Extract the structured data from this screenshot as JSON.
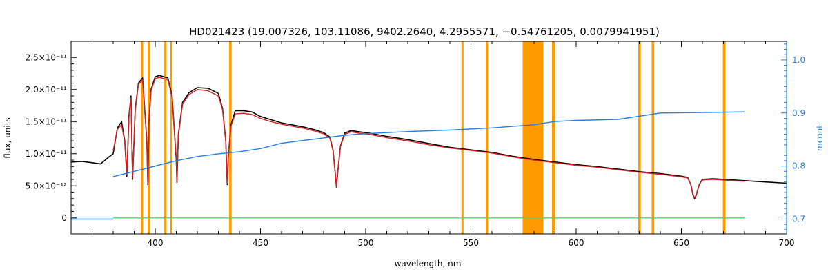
{
  "chart_data": {
    "type": "line",
    "title": "HD021423   (19.007326, 103.11086, 9402.2640, 4.2955571, −0.54761205, 0.0079941951)",
    "xlabel": "wavelength, nm",
    "ylabel": "flux, units",
    "y2label": "mcont",
    "xlim": [
      360,
      700
    ],
    "ylim": [
      -2.5e-12,
      2.75e-11
    ],
    "y2lim": [
      0.672,
      1.035
    ],
    "x_ticks": [
      400,
      450,
      500,
      550,
      600,
      650,
      700
    ],
    "x_tick_labels": [
      "400",
      "450",
      "500",
      "550",
      "600",
      "650",
      "700"
    ],
    "y_ticks": [
      0,
      5e-12,
      1e-11,
      1.5e-11,
      2e-11,
      2.5e-11
    ],
    "y_tick_labels": [
      "0",
      "5.0×10⁻¹²",
      "1.0×10⁻¹¹",
      "1.5×10⁻¹¹",
      "2.0×10⁻¹¹",
      "2.5×10⁻¹¹"
    ],
    "y2_ticks": [
      0.7,
      0.8,
      0.9,
      1.0
    ],
    "y2_tick_labels": [
      "0.7",
      "0.8",
      "0.9",
      "1.0"
    ],
    "grid": false,
    "legend": "none",
    "masked_bands": [
      [
        393.2,
        394.2
      ],
      [
        396.4,
        397.4
      ],
      [
        404.3,
        405.3
      ],
      [
        407.2,
        408.2
      ],
      [
        435.1,
        436.3
      ],
      [
        545.5,
        546.5
      ],
      [
        557.1,
        558.1
      ],
      [
        574.6,
        584.4
      ],
      [
        588.5,
        590.0
      ],
      [
        629.5,
        630.7
      ],
      [
        635.9,
        637.1
      ],
      [
        669.7,
        671.0
      ]
    ],
    "series": [
      {
        "axis": "left",
        "x": [
          360,
          365,
          370,
          374,
          378,
          380,
          382,
          384,
          385.5,
          386.5,
          387.5,
          388.5,
          389.2,
          390.5,
          392,
          394,
          396,
          396.5,
          397,
          398,
          400,
          402,
          404,
          406,
          408,
          410,
          410.3,
          411,
          413,
          416,
          420,
          425,
          430,
          432,
          433.5,
          434.2,
          434.8,
          436,
          438,
          442,
          446,
          450,
          455,
          460,
          465,
          470,
          475,
          480,
          483,
          484.5,
          485.5,
          486.1,
          486.7,
          488,
          490,
          493,
          497,
          502,
          510,
          520,
          530,
          540,
          550,
          560,
          570,
          580,
          590,
          600,
          610,
          620,
          630,
          640,
          645,
          650,
          653,
          654.5,
          655.5,
          656.3,
          657.1,
          658.5,
          660,
          665,
          670,
          680,
          690,
          700
        ],
        "values": [
          8.7e-12,
          8.8e-12,
          8.6e-12,
          8.4e-12,
          9.5e-12,
          1e-11,
          1.4e-11,
          1.5e-11,
          1.2e-11,
          6.5e-12,
          1.6e-11,
          1.9e-11,
          6e-12,
          1.7e-11,
          2.1e-11,
          2.18e-11,
          1.2e-11,
          5.2e-12,
          1.5e-11,
          2e-11,
          2.2e-11,
          2.22e-11,
          2.2e-11,
          2.18e-11,
          1.9e-11,
          9e-12,
          5.5e-12,
          1.3e-11,
          1.8e-11,
          1.95e-11,
          2.03e-11,
          2.02e-11,
          1.94e-11,
          1.7e-11,
          1.2e-11,
          5.2e-12,
          1e-11,
          1.45e-11,
          1.67e-11,
          1.67e-11,
          1.65e-11,
          1.58e-11,
          1.53e-11,
          1.48e-11,
          1.45e-11,
          1.42e-11,
          1.38e-11,
          1.33e-11,
          1.26e-11,
          1.05e-11,
          7e-12,
          4.8e-12,
          7e-12,
          1.12e-11,
          1.32e-11,
          1.36e-11,
          1.34e-11,
          1.32e-11,
          1.27e-11,
          1.22e-11,
          1.16e-11,
          1.1e-11,
          1.06e-11,
          1.02e-11,
          9.6e-12,
          9.1e-12,
          8.7e-12,
          8.3e-12,
          8e-12,
          7.6e-12,
          7.2e-12,
          6.9e-12,
          6.7e-12,
          6.5e-12,
          6.3e-12,
          5.2e-12,
          3.6e-12,
          3e-12,
          3.6e-12,
          5.2e-12,
          6e-12,
          6.1e-12,
          6e-12,
          5.8e-12,
          5.6e-12,
          5.4e-12
        ],
        "color": "#000000"
      },
      {
        "axis": "left",
        "x": [
          380,
          382,
          384,
          385.5,
          386.5,
          387.5,
          388.5,
          389.2,
          390.5,
          392,
          394,
          396,
          396.5,
          397,
          398,
          400,
          402,
          404,
          406,
          408,
          410,
          410.3,
          411,
          413,
          416,
          420,
          425,
          430,
          432,
          433.5,
          434.2,
          434.8,
          436,
          438,
          442,
          446,
          450,
          455,
          460,
          465,
          470,
          475,
          480,
          483,
          484.5,
          485.5,
          486.1,
          486.7,
          488,
          490,
          493,
          497,
          502,
          510,
          520,
          530,
          540,
          550,
          560,
          570,
          580,
          590,
          600,
          610,
          620,
          630,
          640,
          645,
          650,
          653,
          654.5,
          655.5,
          656.3,
          657.1,
          658.5,
          660,
          665,
          670,
          680
        ],
        "values": [
          1.05e-11,
          1.38e-11,
          1.45e-11,
          1.18e-11,
          6.7e-12,
          1.58e-11,
          1.87e-11,
          6.2e-12,
          1.68e-11,
          2.08e-11,
          2.15e-11,
          1.2e-11,
          5.4e-12,
          1.48e-11,
          1.98e-11,
          2.17e-11,
          2.19e-11,
          2.17e-11,
          2.15e-11,
          1.88e-11,
          9.2e-12,
          5.7e-12,
          1.28e-11,
          1.77e-11,
          1.92e-11,
          2e-11,
          1.98e-11,
          1.9e-11,
          1.68e-11,
          1.19e-11,
          5.4e-12,
          1e-11,
          1.43e-11,
          1.62e-11,
          1.63e-11,
          1.61e-11,
          1.55e-11,
          1.5e-11,
          1.46e-11,
          1.43e-11,
          1.4e-11,
          1.36e-11,
          1.31e-11,
          1.24e-11,
          1.04e-11,
          7.1e-12,
          4.9e-12,
          7.1e-12,
          1.11e-11,
          1.3e-11,
          1.34e-11,
          1.32e-11,
          1.3e-11,
          1.25e-11,
          1.2e-11,
          1.14e-11,
          1.09e-11,
          1.05e-11,
          1.01e-11,
          9.5e-12,
          9e-12,
          8.6e-12,
          8.2e-12,
          7.9e-12,
          7.5e-12,
          7.1e-12,
          6.8e-12,
          6.6e-12,
          6.4e-12,
          6.2e-12,
          5.2e-12,
          3.7e-12,
          3.1e-12,
          3.7e-12,
          5.2e-12,
          5.9e-12,
          6e-12,
          5.9e-12,
          5.7e-12
        ],
        "color": "#d81e1e"
      },
      {
        "axis": "right",
        "x": [
          380,
          390,
          400,
          410,
          420,
          430,
          440,
          450,
          460,
          470,
          480,
          490,
          500,
          520,
          540,
          560,
          580,
          590,
          600,
          620,
          630,
          640,
          660,
          680
        ],
        "values": [
          0.78,
          0.79,
          0.8,
          0.81,
          0.818,
          0.823,
          0.827,
          0.833,
          0.843,
          0.848,
          0.853,
          0.858,
          0.861,
          0.865,
          0.868,
          0.872,
          0.878,
          0.884,
          0.886,
          0.888,
          0.894,
          0.9,
          0.901,
          0.902
        ],
        "color": "#1e7ee4"
      },
      {
        "axis": "right",
        "x": [
          360,
          380
        ],
        "values": [
          0.7,
          0.7
        ],
        "color": "#1e7ee4"
      },
      {
        "axis": "left",
        "x": [
          380,
          384,
          386,
          390,
          395,
          400,
          410,
          420,
          430,
          440,
          450,
          460,
          480,
          500,
          520,
          550,
          580,
          600,
          630,
          650,
          680
        ],
        "values": [
          0,
          0,
          0,
          0,
          0,
          0,
          0,
          0,
          0,
          0,
          0,
          0,
          0,
          0,
          0,
          0,
          0,
          0,
          0,
          0,
          0
        ],
        "color": "#22ee66"
      }
    ]
  }
}
